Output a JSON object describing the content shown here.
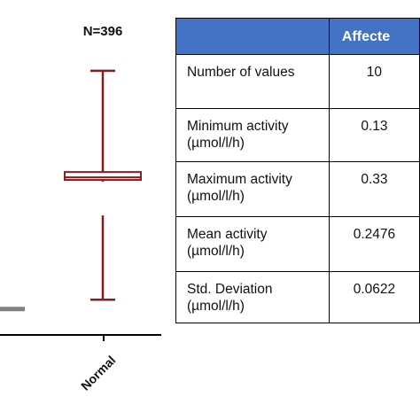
{
  "chart_data": [
    {
      "type": "box",
      "categories": [
        "Normal"
      ],
      "annotations": [
        "N=396"
      ],
      "series": [
        {
          "category": "Normal",
          "color": "#8b1a1a",
          "whisker_low": 0.05,
          "box_low": 0.73,
          "median": 0.745,
          "box_high": 0.775,
          "whisker_high": 1.35
        }
      ],
      "ylim": [
        -0.15,
        1.45
      ],
      "extra_marks": [
        {
          "description": "grey horizontal bar at left edge",
          "value": 0.0,
          "color": "#808080"
        }
      ]
    },
    {
      "type": "table",
      "columns": [
        "",
        "Affecte"
      ],
      "rows": [
        {
          "label": [
            "Number of values"
          ],
          "value": "10"
        },
        {
          "label": [
            "Minimum activity",
            "(µmol/l/h)"
          ],
          "value": "0.13"
        },
        {
          "label": [
            "Maximum activity",
            "(µmol/l/h)"
          ],
          "value": "0.33"
        },
        {
          "label": [
            "Mean activity",
            "(µmol/l/h)"
          ],
          "value": "0.2476"
        },
        {
          "label": [
            "Std. Deviation",
            "(µmol/l/h)"
          ],
          "value": "0.0622"
        }
      ]
    }
  ],
  "colors": {
    "header": "#4472c4",
    "box": "#8b1a1a"
  }
}
